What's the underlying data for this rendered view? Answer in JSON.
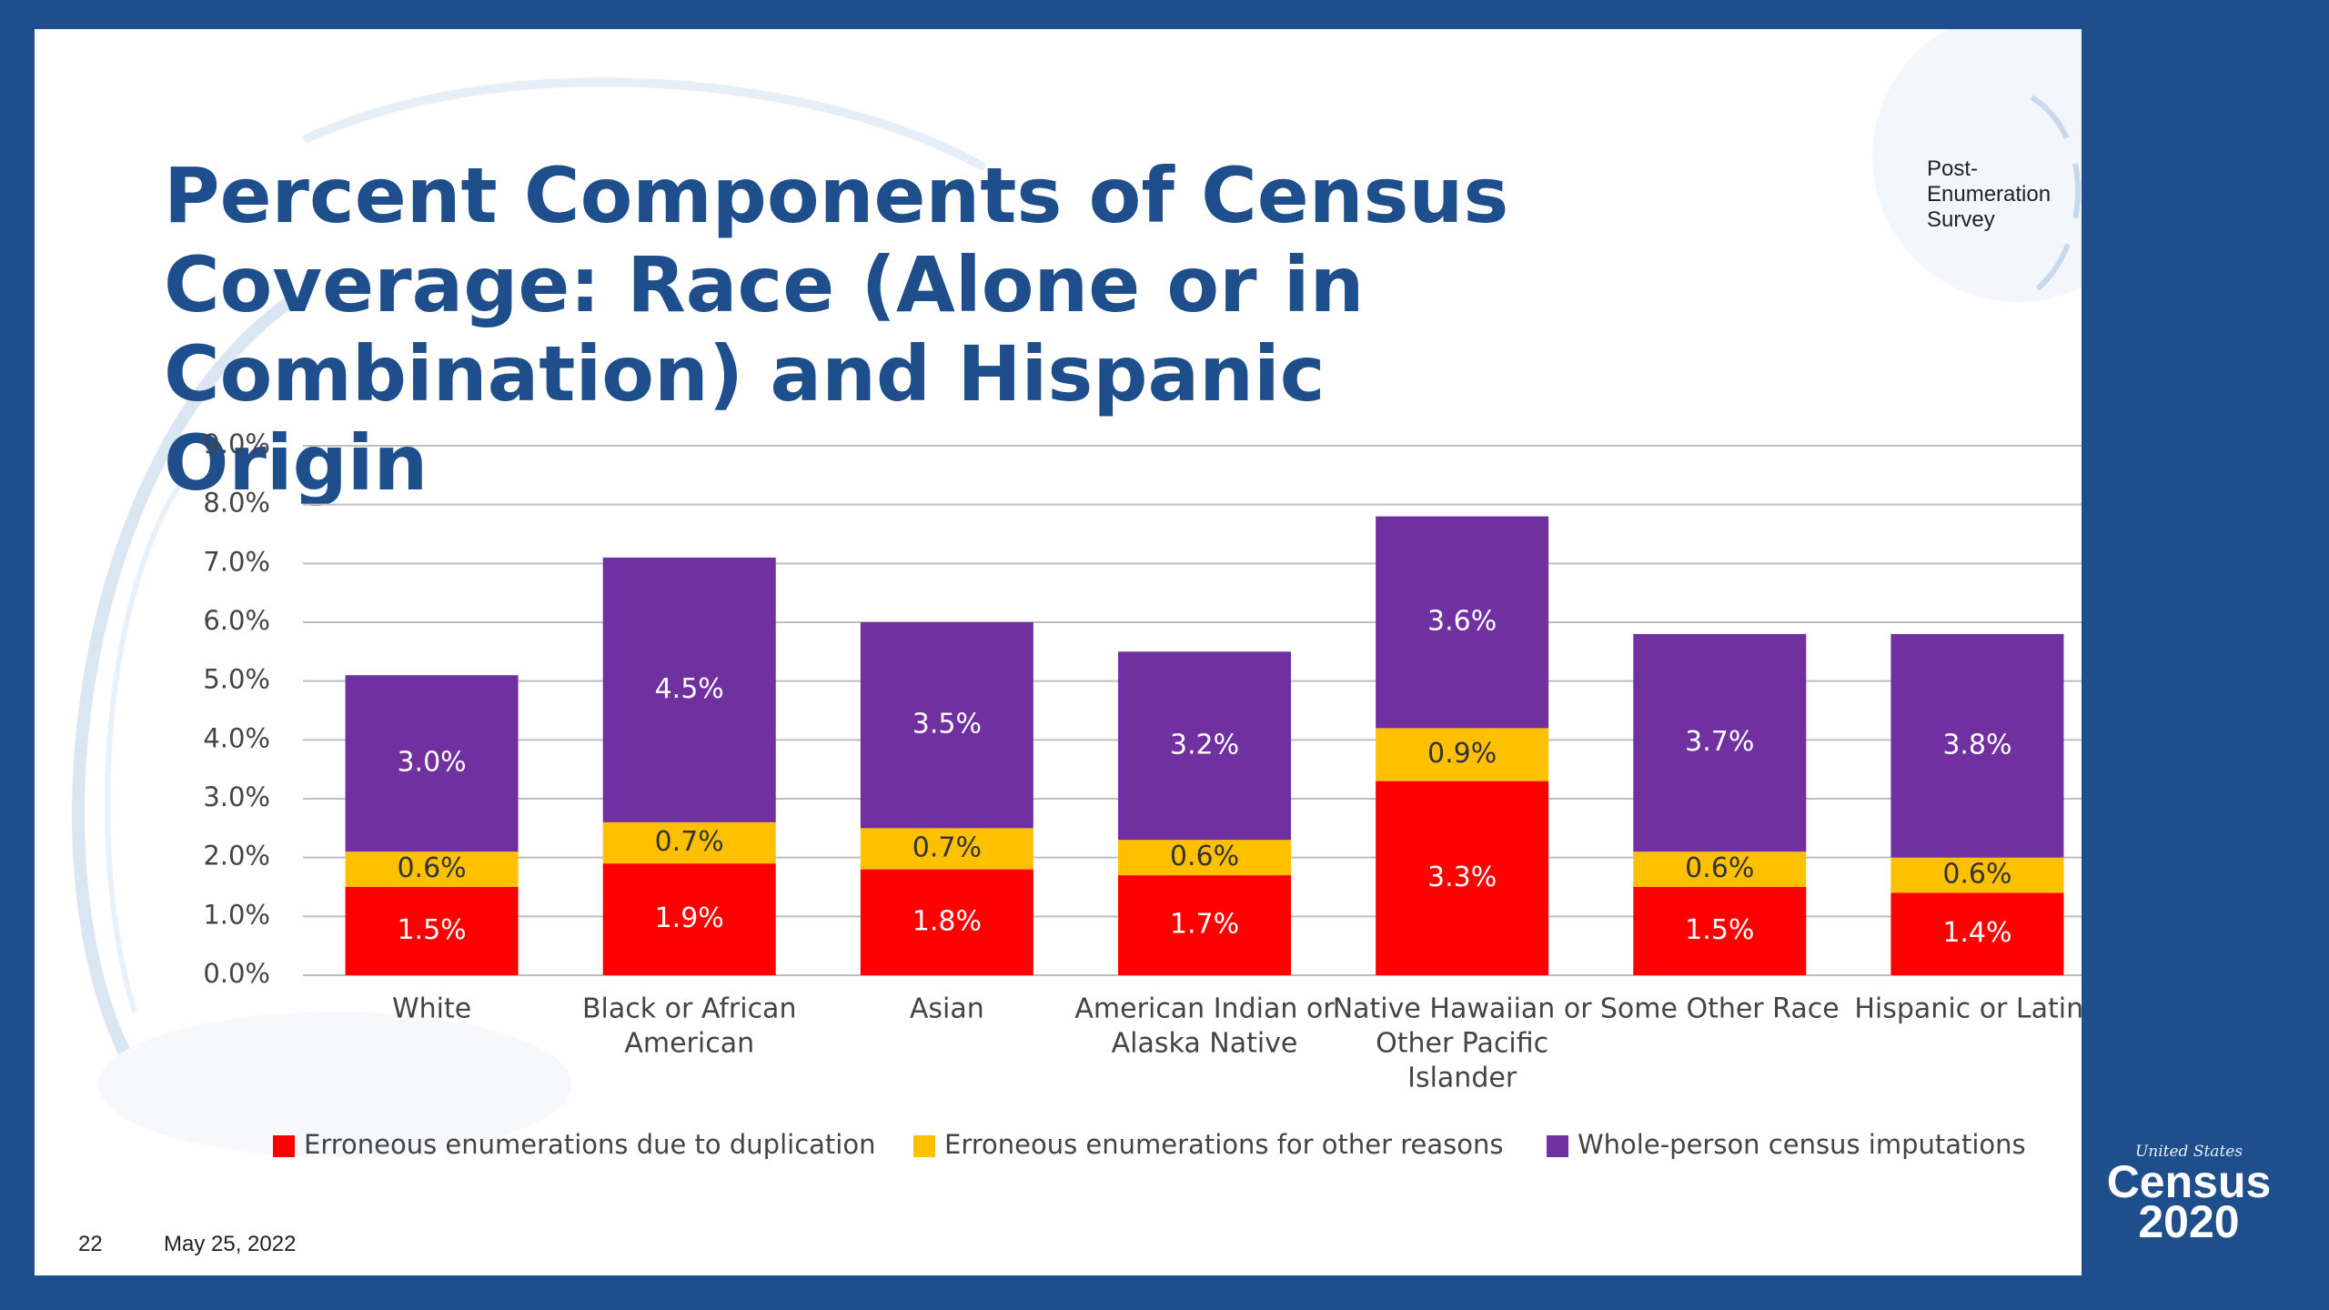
{
  "header": {
    "survey_label": "Post-Enumeration  Survey"
  },
  "slide": {
    "number": "22",
    "date": "May 25, 2022"
  },
  "logo": {
    "small": "United States",
    "word": "Census",
    "year": "2020"
  },
  "colors": {
    "duplication": "#ff0000",
    "other_reasons": "#ffc000",
    "imputations": "#7030a0",
    "title": "#1f4e8c",
    "frame": "#1f4e8c"
  },
  "chart_data": {
    "type": "bar",
    "stacked": true,
    "title": "Percent Components of Census Coverage: Race (Alone or in Combination) and Hispanic Origin",
    "categories": [
      [
        "White"
      ],
      [
        "Black or African",
        "American"
      ],
      [
        "Asian"
      ],
      [
        "American Indian or",
        "Alaska Native"
      ],
      [
        "Native Hawaiian or",
        "Other Pacific",
        "Islander"
      ],
      [
        "Some Other Race"
      ],
      [
        "Hispanic or Latino"
      ]
    ],
    "series": [
      {
        "name": "Erroneous enumerations due to duplication",
        "color_key": "duplication",
        "values": [
          1.5,
          1.9,
          1.8,
          1.7,
          3.3,
          1.5,
          1.4
        ],
        "labels": [
          "1.5%",
          "1.9%",
          "1.8%",
          "1.7%",
          "3.3%",
          "1.5%",
          "1.4%"
        ]
      },
      {
        "name": "Erroneous enumerations for other reasons",
        "color_key": "other_reasons",
        "values": [
          0.6,
          0.7,
          0.7,
          0.6,
          0.9,
          0.6,
          0.6
        ],
        "labels": [
          "0.6%",
          "0.7%",
          "0.7%",
          "0.6%",
          "0.9%",
          "0.6%",
          "0.6%"
        ]
      },
      {
        "name": "Whole-person  census imputations",
        "color_key": "imputations",
        "values": [
          3.0,
          4.5,
          3.5,
          3.2,
          3.6,
          3.7,
          3.8
        ],
        "labels": [
          "3.0%",
          "4.5%",
          "3.5%",
          "3.2%",
          "3.6%",
          "3.7%",
          "3.8%"
        ]
      }
    ],
    "ylim": [
      0,
      9
    ],
    "yticks": [
      "0.0%",
      "1.0%",
      "2.0%",
      "3.0%",
      "4.0%",
      "5.0%",
      "6.0%",
      "7.0%",
      "8.0%",
      "9.0%"
    ],
    "grid": true,
    "legend_position": "bottom"
  }
}
